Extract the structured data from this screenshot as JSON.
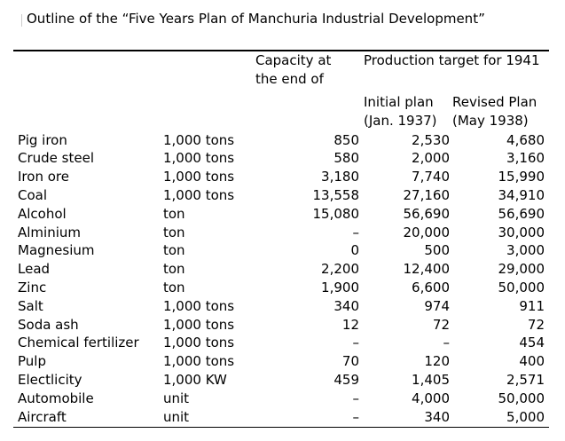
{
  "title": "Outline of the “Five Years Plan of Manchuria Industrial Development”",
  "headers": {
    "capacity_line1": "Capacity at",
    "capacity_line2": "the end of",
    "production_target": "Production target for 1941",
    "initial_line1": "Initial plan",
    "initial_line2": "(Jan. 1937)",
    "revised_line1": "Revised Plan",
    "revised_line2": "(May 1938)"
  },
  "rows": [
    {
      "item": "Pig iron",
      "unit": "1,000 tons",
      "capacity": "850",
      "initial": "2,530",
      "revised": "4,680"
    },
    {
      "item": "Crude steel",
      "unit": "1,000 tons",
      "capacity": "580",
      "initial": "2,000",
      "revised": "3,160"
    },
    {
      "item": "Iron ore",
      "unit": "1,000 tons",
      "capacity": "3,180",
      "initial": "7,740",
      "revised": "15,990"
    },
    {
      "item": "Coal",
      "unit": "1,000 tons",
      "capacity": "13,558",
      "initial": "27,160",
      "revised": "34,910"
    },
    {
      "item": "Alcohol",
      "unit": "ton",
      "capacity": "15,080",
      "initial": "56,690",
      "revised": "56,690"
    },
    {
      "item": "Alminium",
      "unit": "ton",
      "capacity": "–",
      "initial": "20,000",
      "revised": "30,000"
    },
    {
      "item": "Magnesium",
      "unit": "ton",
      "capacity": "0",
      "initial": "500",
      "revised": "3,000"
    },
    {
      "item": "Lead",
      "unit": "ton",
      "capacity": "2,200",
      "initial": "12,400",
      "revised": "29,000"
    },
    {
      "item": "Zinc",
      "unit": "ton",
      "capacity": "1,900",
      "initial": "6,600",
      "revised": "50,000"
    },
    {
      "item": "Salt",
      "unit": "1,000 tons",
      "capacity": "340",
      "initial": "974",
      "revised": "911"
    },
    {
      "item": "Soda ash",
      "unit": "1,000 tons",
      "capacity": "12",
      "initial": "72",
      "revised": "72"
    },
    {
      "item": "Chemical fertilizer",
      "unit": "1,000 tons",
      "capacity": "–",
      "initial": "–",
      "revised": "454"
    },
    {
      "item": "Pulp",
      "unit": "1,000 tons",
      "capacity": "70",
      "initial": "120",
      "revised": "400"
    },
    {
      "item": "Electlicity",
      "unit": "1,000 KW",
      "capacity": "459",
      "initial": "1,405",
      "revised": "2,571"
    },
    {
      "item": "Automobile",
      "unit": "unit",
      "capacity": "–",
      "initial": "4,000",
      "revised": "50,000"
    },
    {
      "item": "Aircraft",
      "unit": "unit",
      "capacity": "–",
      "initial": "340",
      "revised": "5,000"
    }
  ]
}
